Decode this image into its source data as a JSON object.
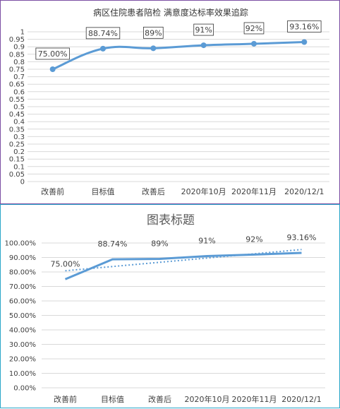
{
  "chart_data": [
    {
      "type": "line",
      "title": "病区住院患者陪检 满意度达标率效果追踪",
      "categories": [
        "改善前",
        "目标值",
        "改善后",
        "2020年10月",
        "2020年11月",
        "2020/12/1"
      ],
      "series": [
        {
          "values": [
            0.75,
            0.8874,
            0.89,
            0.91,
            0.92,
            0.9316
          ]
        }
      ],
      "data_labels": [
        "75.00%",
        "88.74%",
        "89%",
        "91%",
        "92%",
        "93.16%"
      ],
      "y_ticks": [
        "0",
        "0.05",
        "0.1",
        "0.15",
        "0.2",
        "0.25",
        "0.3",
        "0.35",
        "0.4",
        "0.45",
        "0.5",
        "0.55",
        "0.6",
        "0.65",
        "0.7",
        "0.75",
        "0.8",
        "0.85",
        "0.9",
        "0.95",
        "1"
      ],
      "ylim": [
        0,
        1
      ],
      "grid": true,
      "smooth": true,
      "markers": true,
      "line_color": "#5b9bd5"
    },
    {
      "type": "line",
      "title": "图表标题",
      "categories": [
        "改善前",
        "目标值",
        "改善后",
        "2020年10月",
        "2020年11月",
        "2020/12/1"
      ],
      "series": [
        {
          "values": [
            0.75,
            0.8874,
            0.89,
            0.91,
            0.92,
            0.9316
          ]
        }
      ],
      "data_labels": [
        "75.00%",
        "88.74%",
        "89%",
        "91%",
        "92%",
        "93.16%"
      ],
      "y_ticks": [
        "0.00%",
        "10.00%",
        "20.00%",
        "30.00%",
        "40.00%",
        "50.00%",
        "60.00%",
        "70.00%",
        "80.00%",
        "90.00%",
        "100.00%"
      ],
      "ylim": [
        0,
        1
      ],
      "grid": true,
      "trendline": "linear",
      "line_color": "#5b9bd5"
    }
  ]
}
